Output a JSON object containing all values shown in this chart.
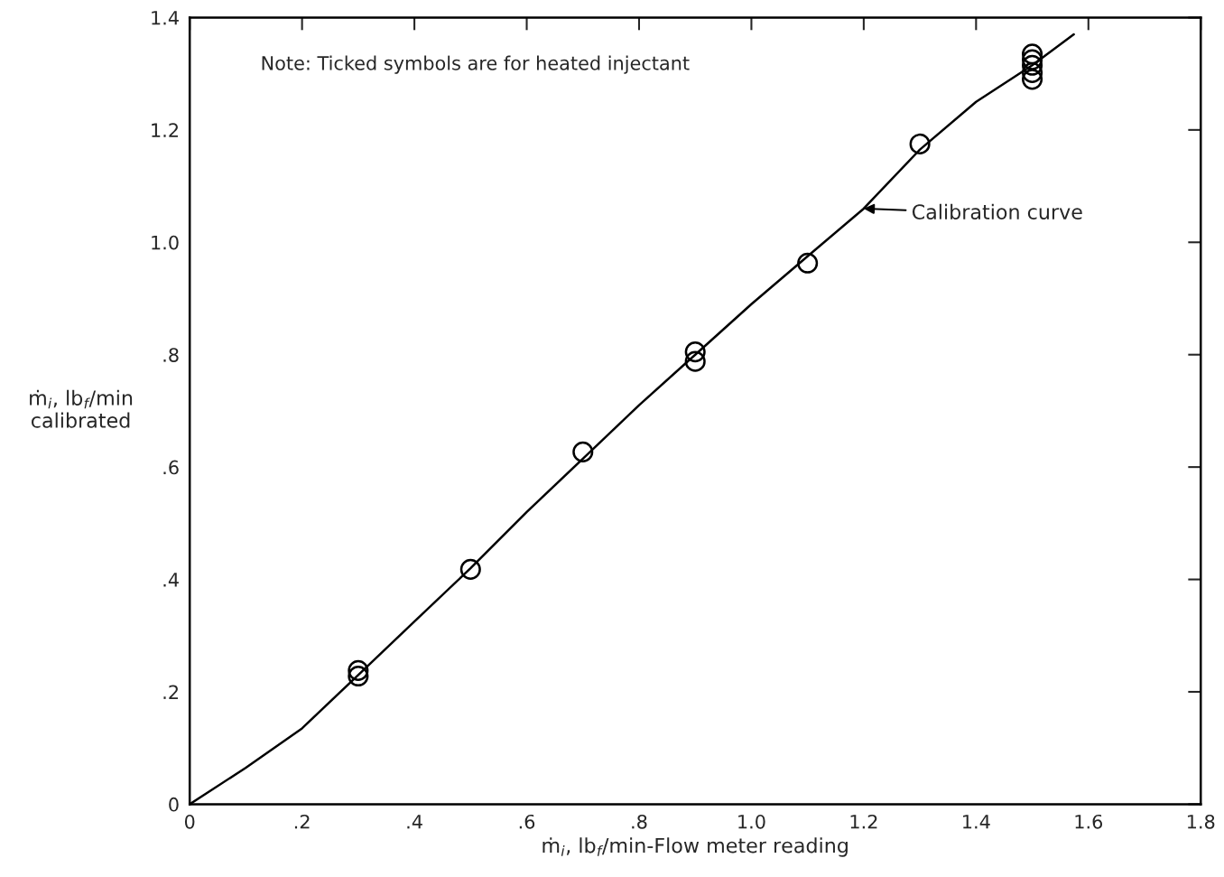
{
  "chart_data": {
    "type": "scatter",
    "xlabel": "ṁ$_{i}$, lb$_{f}$/min-Flow meter reading",
    "ylabel": "ṁ$_{i}$, lb$_{f}$/min\ncalibrated",
    "x": [
      0.3,
      0.3,
      0.5,
      0.7,
      0.9,
      0.9,
      1.1,
      1.3,
      1.5,
      1.5,
      1.5,
      1.5,
      1.5
    ],
    "series": [
      {
        "color": "#000000",
        "marker": "circle",
        "values": [
          0.238,
          0.228,
          0.418,
          0.627,
          0.805,
          0.788,
          0.963,
          1.175,
          1.335,
          1.325,
          1.315,
          1.302,
          1.29
        ]
      },
      {
        "type": "line",
        "color": "#000000",
        "marker": "none",
        "line_style": "solid",
        "x": [
          0,
          0.1,
          0.2,
          0.3,
          0.4,
          0.5,
          0.6,
          0.7,
          0.8,
          0.9,
          1.0,
          1.1,
          1.2,
          1.3,
          1.4,
          1.5,
          1.574
        ],
        "values": [
          0,
          0.065,
          0.135,
          0.23,
          0.325,
          0.42,
          0.52,
          0.615,
          0.71,
          0.8,
          0.89,
          0.975,
          1.06,
          1.165,
          1.25,
          1.315,
          1.37
        ]
      }
    ],
    "annotations": [
      "Note: Ticked symbols are for heated injectant",
      {
        "text": "Calibration curve",
        "x": 1.2,
        "y": 1.06
      }
    ],
    "xlim": [
      0,
      1.8
    ],
    "ylim": [
      0,
      1.4
    ],
    "xticks": [
      0,
      {
        "value": 0.2,
        "label": ".2"
      },
      {
        "value": 0.4,
        "label": ".4"
      },
      {
        "value": 0.6,
        "label": ".6"
      },
      {
        "value": 0.8,
        "label": ".8"
      },
      {
        "value": 1.0,
        "label": "1.0"
      },
      {
        "value": 1.2,
        "label": "1.2"
      },
      {
        "value": 1.4,
        "label": "1.4"
      },
      {
        "value": 1.6,
        "label": "1.6"
      },
      {
        "value": 1.8,
        "label": "1.8"
      }
    ],
    "yticks": [
      0,
      {
        "value": 0.2,
        "label": ".2"
      },
      {
        "value": 0.4,
        "label": ".4"
      },
      {
        "value": 0.6,
        "label": ".6"
      },
      {
        "value": 0.8,
        "label": ".8"
      },
      {
        "value": 1.0,
        "label": "1.0"
      },
      {
        "value": 1.2,
        "label": "1.2"
      },
      {
        "value": 1.4,
        "label": "1.4"
      }
    ],
    "grid": false
  }
}
